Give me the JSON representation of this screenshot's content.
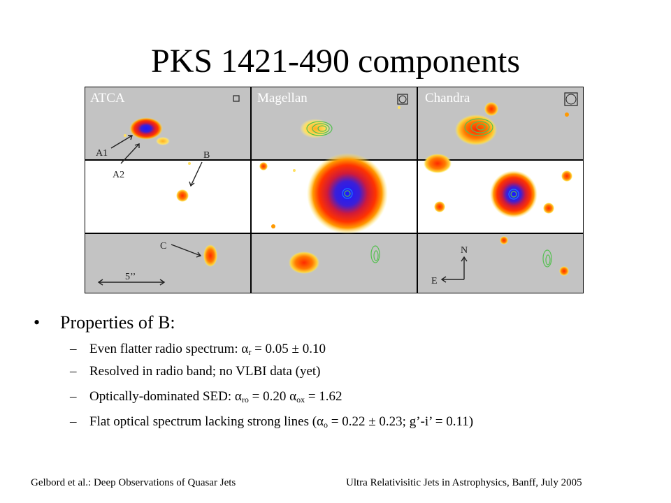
{
  "slide": {
    "title": "PKS 1421-490 components"
  },
  "figure": {
    "panels": [
      "ATCA",
      "Magellan",
      "Chandra"
    ],
    "labels": {
      "a1": "A1",
      "a2": "A2",
      "b": "B",
      "c": "C",
      "scale": "5’’",
      "north": "N",
      "east": "E"
    },
    "colors": {
      "gray_row": "#c3c3c3",
      "white_row": "#ffffff",
      "grid_line": "#000000"
    }
  },
  "bullets": {
    "main": "Properties of B:",
    "items": [
      {
        "text": "Even flatter radio spectrum: ",
        "sym": "α",
        "sub": "r",
        "rest": " = 0.05 ± 0.10"
      },
      {
        "text": "Resolved in radio band; no VLBI data (yet)"
      },
      {
        "text": "Optically-dominated SED: ",
        "sym": "α",
        "sub": "ro",
        "mid": " = 0.20 ",
        "sym2": "α",
        "sub2": "ox",
        "rest": " = 1.62"
      },
      {
        "text": "Flat optical spectrum lacking strong lines (",
        "sym": "α",
        "sub": "o",
        "rest": " = 0.22 ± 0.23; g’-i’ = 0.11)"
      }
    ]
  },
  "footer": {
    "left": "Gelbord et al.: Deep Observations of Quasar Jets",
    "right": "Ultra Relativisitic Jets in Astrophysics, Banff, July 2005"
  }
}
